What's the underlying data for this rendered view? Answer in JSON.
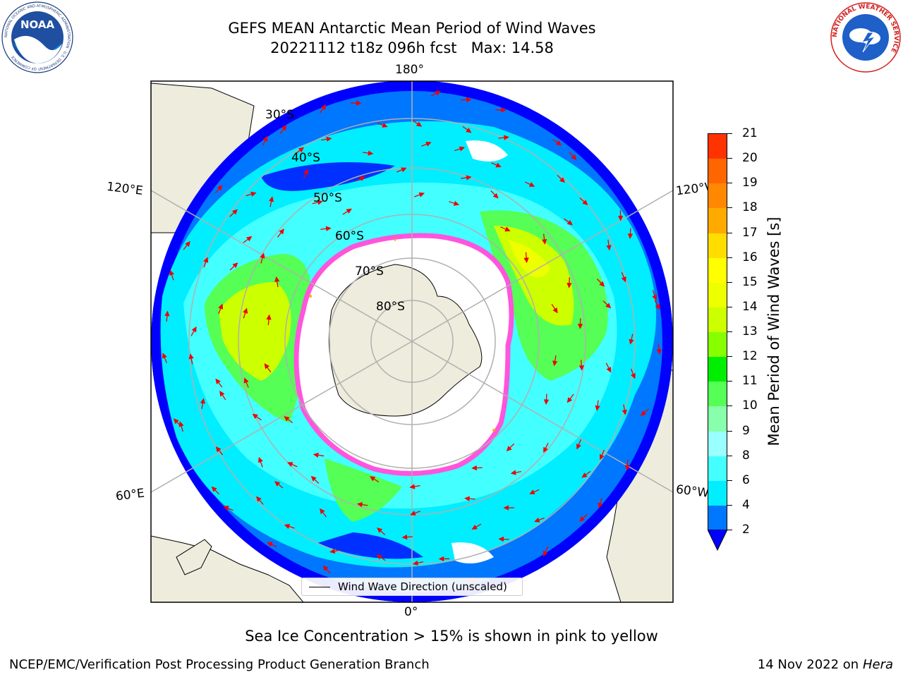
{
  "header": {
    "title_line1": "GEFS MEAN Antarctic Mean Period of Wind Waves",
    "title_line2": "20221112 t18z 096h fcst   Max: 14.58",
    "logo_left_text": "NOAA",
    "logo_left_ring": "NATIONAL OCEANIC AND ATMOSPHERIC ADMINISTRATION · U.S. DEPARTMENT OF COMMERCE",
    "logo_right_ring": "NATIONAL WEATHER SERVICE"
  },
  "map": {
    "projection": "south-polar-stereographic",
    "lon_labels": {
      "top": "180°",
      "upper_left": "120°E",
      "upper_right": "120°W",
      "lower_left": "60°E",
      "lower_right": "60°W",
      "bottom": "0°"
    },
    "lat_labels": [
      "30°S",
      "40°S",
      "50°S",
      "60°S",
      "70°S",
      "80°S"
    ],
    "legend_label": "Wind Wave Direction (unscaled)",
    "colors": {
      "land": "#eeecdc",
      "sea_ice": "#ffffff",
      "ice_edge": "#ff55dd",
      "arrows": "#ee0000",
      "grid": "#b0b0b0"
    }
  },
  "colorbar": {
    "label": "Mean Period of Wind Waves [s]",
    "ticks": [
      "21",
      "20",
      "19",
      "18",
      "17",
      "16",
      "15",
      "14",
      "13",
      "12",
      "11",
      "10",
      "9",
      "8",
      "6",
      "4",
      "2"
    ],
    "colors": [
      "#ff0000",
      "#ff3300",
      "#ff6600",
      "#ff8800",
      "#ffaa00",
      "#ffdd00",
      "#ffff00",
      "#eeff00",
      "#ccff00",
      "#88ff00",
      "#00ee00",
      "#55ff55",
      "#88ffaa",
      "#99ffff",
      "#44ffff",
      "#00eeff",
      "#0077ff",
      "#0000ff"
    ]
  },
  "notes": {
    "sea_ice": "Sea Ice Concentration > 15% is shown in pink to yellow"
  },
  "footer": {
    "left": "NCEP/EMC/Verification Post Processing Product Generation Branch",
    "right_prefix": "14 Nov 2022 on",
    "right_machine": "Hera"
  }
}
